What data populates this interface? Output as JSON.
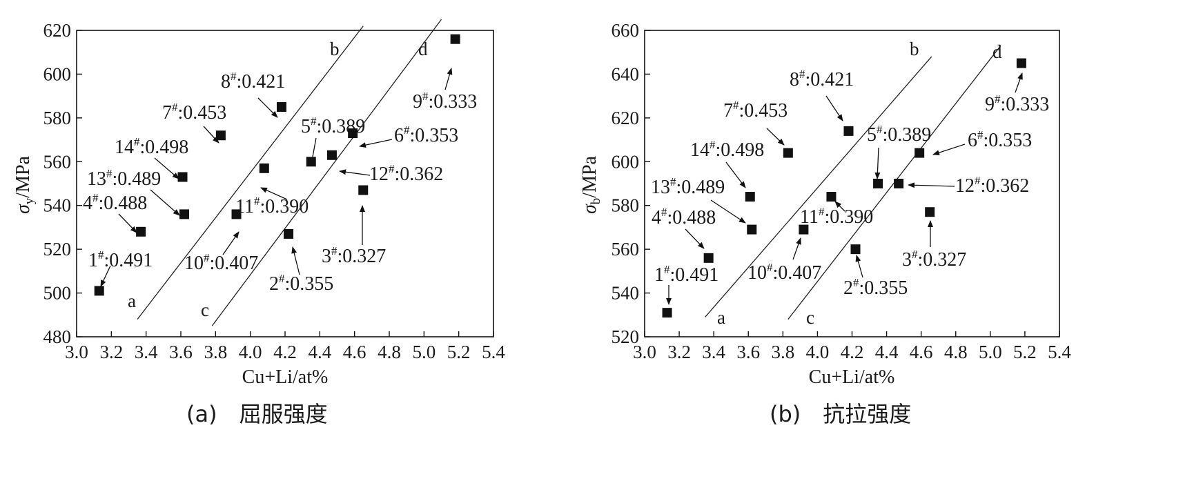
{
  "figure": {
    "panels": [
      {
        "caption": "(a)　屈服强度",
        "ylabel_symbol": "σ",
        "ylabel_sub": "y",
        "ylabel_unit": "/MPa",
        "xlabel": "Cu+Li/at%"
      },
      {
        "caption": "(b)　抗拉强度",
        "ylabel_symbol": "σ",
        "ylabel_sub": "b",
        "ylabel_unit": "/MPa",
        "xlabel": "Cu+Li/at%"
      }
    ]
  },
  "chart_data": [
    {
      "type": "scatter",
      "title": "",
      "xlabel": "Cu+Li/at%",
      "ylabel": "σy/MPa",
      "xlim": [
        3.0,
        5.4
      ],
      "ylim": [
        480,
        620
      ],
      "xticks": [
        "3.0",
        "3.2",
        "3.4",
        "3.6",
        "3.8",
        "4.0",
        "4.2",
        "4.4",
        "4.6",
        "4.8",
        "5.0",
        "5.2",
        "5.4"
      ],
      "yticks": [
        "480",
        "500",
        "520",
        "540",
        "560",
        "580",
        "600",
        "620"
      ],
      "grid": false,
      "marker_color": "#111111",
      "points": [
        {
          "x": 3.13,
          "y": 501,
          "sample": "1",
          "value": "0.491"
        },
        {
          "x": 4.22,
          "y": 527,
          "sample": "2",
          "value": "0.355"
        },
        {
          "x": 4.65,
          "y": 547,
          "sample": "3",
          "value": "0.327"
        },
        {
          "x": 3.37,
          "y": 528,
          "sample": "4",
          "value": "0.488"
        },
        {
          "x": 4.35,
          "y": 560,
          "sample": "5",
          "value": "0.389"
        },
        {
          "x": 4.59,
          "y": 573,
          "sample": "6",
          "value": "0.353"
        },
        {
          "x": 3.83,
          "y": 572,
          "sample": "7",
          "value": "0.453"
        },
        {
          "x": 4.18,
          "y": 585,
          "sample": "8",
          "value": "0.421"
        },
        {
          "x": 5.18,
          "y": 616,
          "sample": "9",
          "value": "0.333"
        },
        {
          "x": 3.92,
          "y": 536,
          "sample": "10",
          "value": "0.407"
        },
        {
          "x": 4.08,
          "y": 557,
          "sample": "11",
          "value": "0.390"
        },
        {
          "x": 4.47,
          "y": 563,
          "sample": "12",
          "value": "0.362"
        },
        {
          "x": 3.62,
          "y": 536,
          "sample": "13",
          "value": "0.489"
        },
        {
          "x": 3.61,
          "y": 553,
          "sample": "14",
          "value": "0.498"
        }
      ],
      "lines": [
        {
          "start_label": "a",
          "end_label": "b",
          "x1": 3.35,
          "y1": 488,
          "x2": 4.65,
          "y2": 622
        },
        {
          "start_label": "c",
          "end_label": "d",
          "x1": 3.78,
          "y1": 485,
          "x2": 5.1,
          "y2": 625
        }
      ]
    },
    {
      "type": "scatter",
      "title": "",
      "xlabel": "Cu+Li/at%",
      "ylabel": "σb/MPa",
      "xlim": [
        3.0,
        5.4
      ],
      "ylim": [
        520,
        660
      ],
      "xticks": [
        "3.0",
        "3.2",
        "3.4",
        "3.6",
        "3.8",
        "4.0",
        "4.2",
        "4.4",
        "4.6",
        "4.8",
        "5.0",
        "5.2",
        "5.4"
      ],
      "yticks": [
        "520",
        "540",
        "560",
        "580",
        "600",
        "620",
        "640",
        "660"
      ],
      "grid": false,
      "marker_color": "#111111",
      "points": [
        {
          "x": 3.13,
          "y": 531,
          "sample": "1",
          "value": "0.491"
        },
        {
          "x": 4.22,
          "y": 560,
          "sample": "2",
          "value": "0.355"
        },
        {
          "x": 4.65,
          "y": 577,
          "sample": "3",
          "value": "0.327"
        },
        {
          "x": 3.37,
          "y": 556,
          "sample": "4",
          "value": "0.488"
        },
        {
          "x": 4.35,
          "y": 590,
          "sample": "5",
          "value": "0.389"
        },
        {
          "x": 4.59,
          "y": 604,
          "sample": "6",
          "value": "0.353"
        },
        {
          "x": 3.83,
          "y": 604,
          "sample": "7",
          "value": "0.453"
        },
        {
          "x": 4.18,
          "y": 614,
          "sample": "8",
          "value": "0.421"
        },
        {
          "x": 5.18,
          "y": 645,
          "sample": "9",
          "value": "0.333"
        },
        {
          "x": 3.92,
          "y": 569,
          "sample": "10",
          "value": "0.407"
        },
        {
          "x": 4.08,
          "y": 584,
          "sample": "11",
          "value": "0.390"
        },
        {
          "x": 4.47,
          "y": 590,
          "sample": "12",
          "value": "0.362"
        },
        {
          "x": 3.62,
          "y": 569,
          "sample": "13",
          "value": "0.489"
        },
        {
          "x": 3.61,
          "y": 584,
          "sample": "14",
          "value": "0.498"
        }
      ],
      "lines": [
        {
          "start_label": "a",
          "end_label": "b",
          "x1": 3.35,
          "y1": 529,
          "x2": 4.66,
          "y2": 648
        },
        {
          "start_label": "c",
          "end_label": "d",
          "x1": 3.83,
          "y1": 528,
          "x2": 5.06,
          "y2": 653
        }
      ]
    }
  ]
}
